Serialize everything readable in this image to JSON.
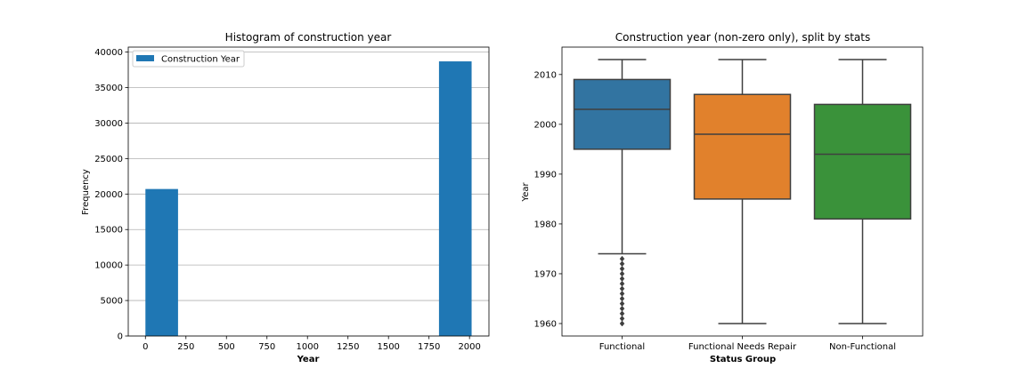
{
  "chart_data": [
    {
      "type": "bar",
      "title": "Histogram of construction year",
      "xlabel": "Year",
      "ylabel": "Frequency",
      "xlim": [
        -106,
        2120
      ],
      "ylim": [
        0,
        40700
      ],
      "xticks": [
        0,
        250,
        500,
        750,
        1000,
        1250,
        1500,
        1750,
        2000
      ],
      "yticks": [
        0,
        5000,
        10000,
        15000,
        20000,
        25000,
        30000,
        35000,
        40000
      ],
      "grid": "horizontal",
      "legend_position": "top-left",
      "series": [
        {
          "name": "Construction Year",
          "color": "#1f77b4",
          "bins": [
            {
              "x0": 0,
              "x1": 201.3,
              "value": 20709
            },
            {
              "x0": 1811.7,
              "x1": 2013,
              "value": 38691
            }
          ]
        }
      ]
    },
    {
      "type": "box",
      "title": "Construction year (non-zero only), split by stats",
      "xlabel": "Status Group",
      "ylabel": "Year",
      "ylim": [
        1957.5,
        2015.5
      ],
      "yticks": [
        1960,
        1970,
        1980,
        1990,
        2000,
        2010
      ],
      "categories": [
        "Functional",
        "Functional Needs Repair",
        "Non-Functional"
      ],
      "boxes": [
        {
          "category": "Functional",
          "color": "#3274a1",
          "whisker_low": 1974,
          "q1": 1995,
          "median": 2003,
          "q3": 2009,
          "whisker_high": 2013,
          "outliers": [
            1960,
            1961,
            1962,
            1963,
            1964,
            1965,
            1966,
            1967,
            1968,
            1969,
            1970,
            1971,
            1972,
            1973
          ]
        },
        {
          "category": "Functional Needs Repair",
          "color": "#e1812c",
          "whisker_low": 1960,
          "q1": 1985,
          "median": 1998,
          "q3": 2006,
          "whisker_high": 2013,
          "outliers": []
        },
        {
          "category": "Non-Functional",
          "color": "#3a923a",
          "whisker_low": 1960,
          "q1": 1981,
          "median": 1994,
          "q3": 2004,
          "whisker_high": 2013,
          "outliers": []
        }
      ]
    }
  ]
}
